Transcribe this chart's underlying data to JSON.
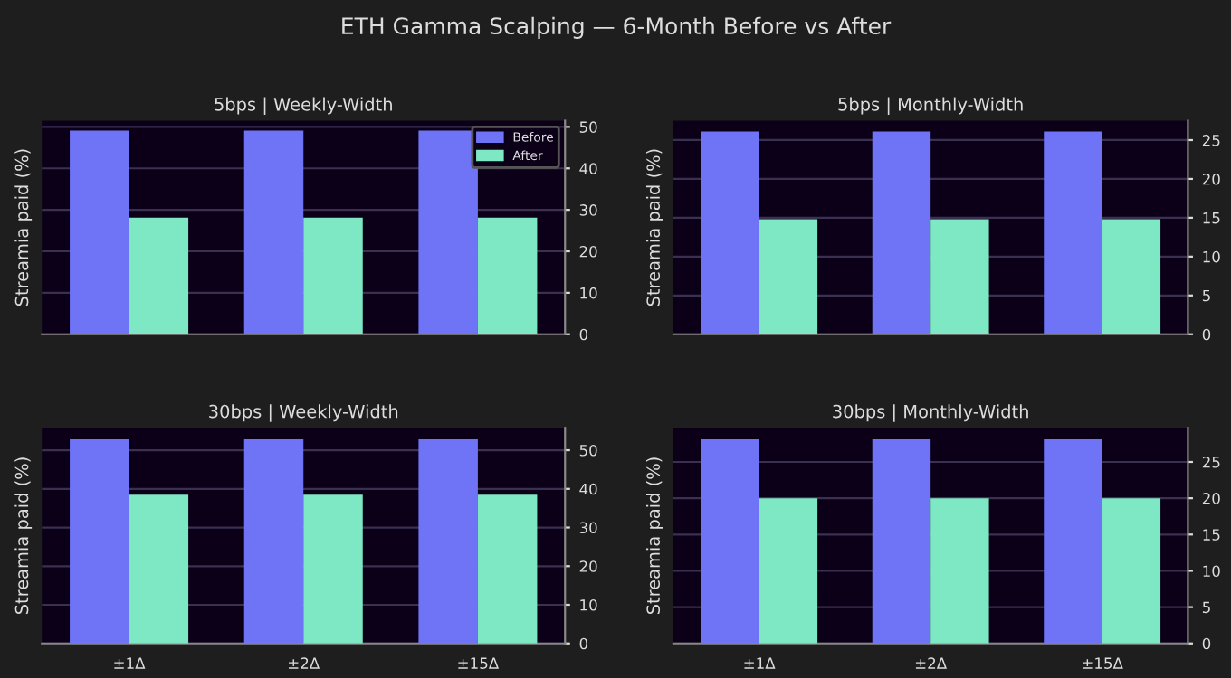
{
  "chart_data": [
    {
      "type": "other",
      "title": "ETH Gamma Scalping — 6-Month Before vs After"
    },
    {
      "type": "bar",
      "title": "5bps | Weekly-Width",
      "ylabel": "Streamia paid (%)",
      "categories": [
        null,
        null,
        null
      ],
      "series": [
        {
          "name": "Before",
          "color": "#6f73f5",
          "values": [
            49.1,
            49.1,
            49.1
          ]
        },
        {
          "name": "After",
          "color": "#7ee8c4",
          "values": [
            28.1,
            28.1,
            28.1
          ]
        }
      ],
      "ylim": [
        0,
        51.5
      ],
      "yticks": [
        0,
        10,
        20,
        30,
        40,
        50
      ],
      "grid": "y",
      "legend": "top right"
    },
    {
      "type": "bar",
      "title": "5bps | Monthly-Width",
      "ylabel": "Streamia paid (%)",
      "categories": [
        null,
        null,
        null
      ],
      "series": [
        {
          "color": "#6f73f5",
          "values": [
            26.1,
            26.1,
            26.1
          ]
        },
        {
          "color": "#7ee8c4",
          "values": [
            14.8,
            14.8,
            14.8
          ]
        }
      ],
      "ylim": [
        0,
        27.5
      ],
      "yticks": [
        0,
        5,
        10,
        15,
        20,
        25
      ],
      "grid": "y"
    },
    {
      "type": "bar",
      "title": "30bps | Weekly-Width",
      "ylabel": "Streamia paid (%)",
      "categories": [
        "±1Δ",
        "±2Δ",
        "±15Δ"
      ],
      "series": [
        {
          "color": "#6f73f5",
          "values": [
            52.8,
            52.8,
            52.8
          ]
        },
        {
          "color": "#7ee8c4",
          "values": [
            38.5,
            38.5,
            38.5
          ]
        }
      ],
      "ylim": [
        0,
        55.8
      ],
      "yticks": [
        0,
        10,
        20,
        30,
        40,
        50
      ],
      "grid": "y"
    },
    {
      "type": "bar",
      "title": "30bps | Monthly-Width",
      "ylabel": "Streamia paid (%)",
      "categories": [
        "±1Δ",
        "±2Δ",
        "±15Δ"
      ],
      "series": [
        {
          "color": "#6f73f5",
          "values": [
            28.1,
            28.1,
            28.1
          ]
        },
        {
          "color": "#7ee8c4",
          "values": [
            20.0,
            20.0,
            20.0
          ]
        }
      ],
      "ylim": [
        0,
        29.7
      ],
      "yticks": [
        0,
        5,
        10,
        15,
        20,
        25
      ],
      "grid": "y"
    }
  ]
}
